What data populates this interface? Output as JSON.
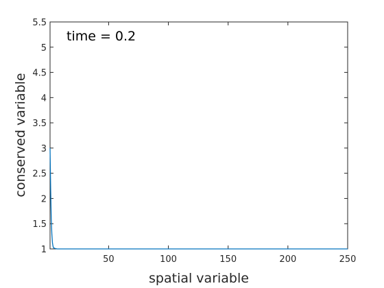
{
  "chart_data": {
    "type": "line",
    "title": "",
    "annotation": "time = 0.2",
    "xlabel": "spatial variable",
    "ylabel": "conserved variable",
    "xlim": [
      1,
      250
    ],
    "ylim": [
      1,
      5.5
    ],
    "xticks": [
      50,
      100,
      150,
      200,
      250
    ],
    "yticks": [
      1,
      1.5,
      2,
      2.5,
      3,
      3.5,
      4,
      4.5,
      5,
      5.5
    ],
    "xtick_labels": [
      "50",
      "100",
      "150",
      "200",
      "250"
    ],
    "ytick_labels": [
      "1",
      "1.5",
      "2",
      "2.5",
      "3",
      "3.5",
      "4",
      "4.5",
      "5",
      "5.5"
    ],
    "grid": false,
    "series": [
      {
        "color": "#0072bd",
        "x": [
          1,
          1.5,
          2,
          2.5,
          3,
          3.5,
          4,
          5,
          7,
          10,
          50,
          100,
          150,
          200,
          250
        ],
        "y": [
          3.0,
          2.2,
          1.6,
          1.3,
          1.12,
          1.05,
          1.02,
          1.01,
          1.0,
          1.0,
          1.0,
          1.0,
          1.0,
          1.0,
          1.0
        ]
      }
    ]
  }
}
